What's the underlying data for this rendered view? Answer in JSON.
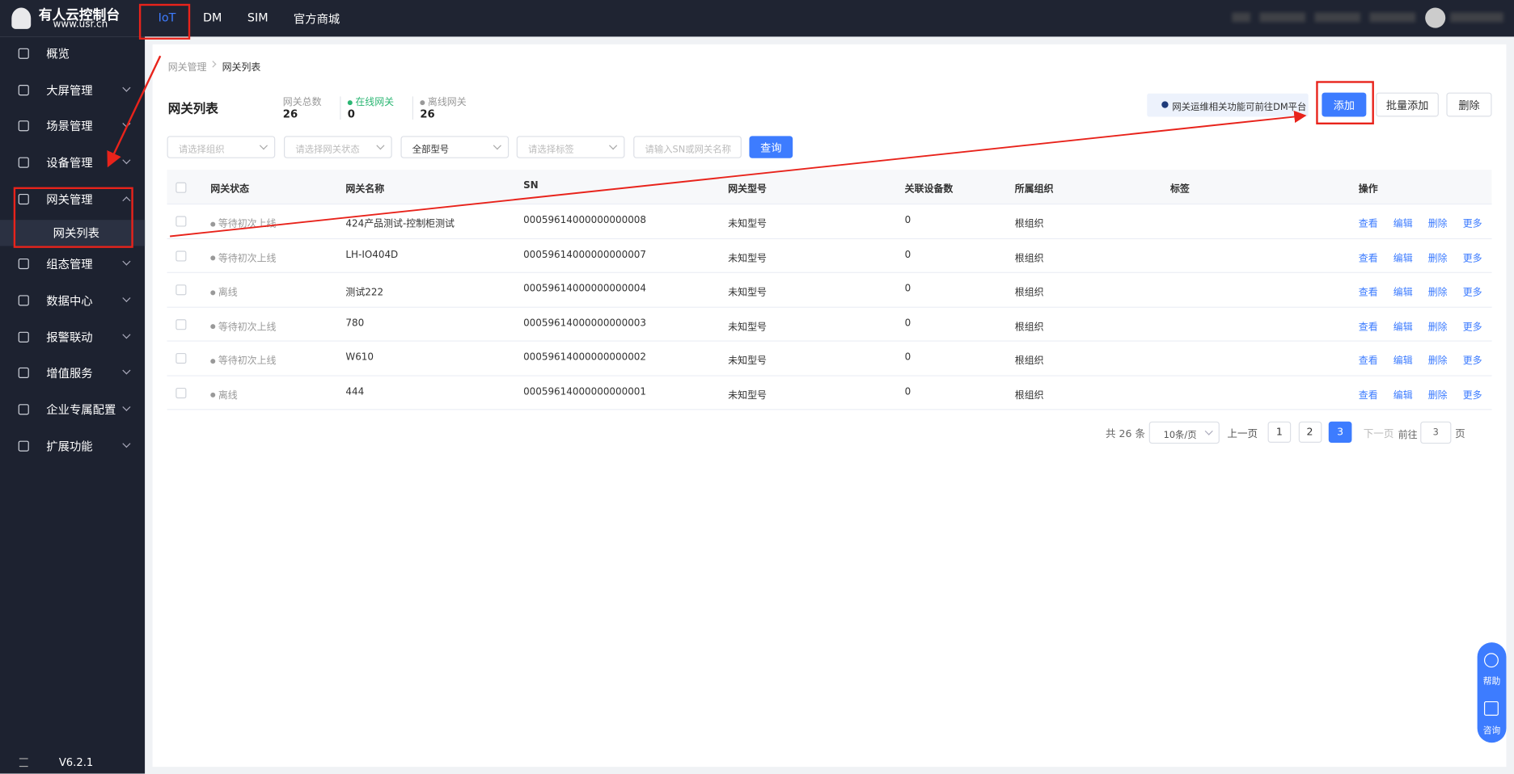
{
  "header": {
    "logo_title": "有人云控制台",
    "logo_url": "www.usr.cn",
    "nav": [
      "IoT",
      "DM",
      "SIM",
      "官方商城"
    ]
  },
  "sidebar": {
    "items": [
      "概览",
      "大屏管理",
      "场景管理",
      "设备管理",
      "网关管理",
      "组态管理",
      "数据中心",
      "报警联动",
      "增值服务",
      "企业专属配置",
      "扩展功能"
    ],
    "sub_item": "网关列表",
    "version": "V6.2.1"
  },
  "breadcrumb": [
    "网关管理",
    "网关列表"
  ],
  "page_title": "网关列表",
  "stats": [
    {
      "label": "网关总数",
      "value": 26
    },
    {
      "label": "在线网关",
      "value": 0
    },
    {
      "label": "离线网关",
      "value": 26
    }
  ],
  "notice": "网关运维相关功能可前往DM平台",
  "buttons": [
    "添加",
    "批量添加",
    "删除"
  ],
  "filters": [
    "请选择组织",
    "请选择网关状态",
    "全部型号",
    "请选择标签"
  ],
  "search_placeholder": "请输入SN或网关名称",
  "query": "查询",
  "table": {
    "columns": [
      "网关状态",
      "网关名称",
      "SN",
      "网关型号",
      "关联设备数",
      "所属组织",
      "标签",
      "操作"
    ],
    "rows": [
      [
        "等待初次上线",
        "424产品测试-控制柜测试",
        "00059614000000000008",
        "未知型号",
        0,
        "根组织"
      ],
      [
        "等待初次上线",
        "LH-IO404D",
        "00059614000000000007",
        "未知型号",
        0,
        "根组织"
      ],
      [
        "离线",
        "测试222",
        "00059614000000000004",
        "未知型号",
        0,
        "根组织"
      ],
      [
        "等待初次上线",
        "780",
        "00059614000000000003",
        "未知型号",
        0,
        "根组织"
      ],
      [
        "等待初次上线",
        "W610",
        "00059614000000000002",
        "未知型号",
        0,
        "根组织"
      ],
      [
        "离线",
        "444",
        "00059614000000000001",
        "未知型号",
        0,
        "根组织"
      ]
    ],
    "actions": [
      "查看",
      "编辑",
      "删除",
      "更多"
    ]
  },
  "pagination": {
    "total": "共 26 条",
    "page_size": "10条/页",
    "prev": "上一页",
    "pages": [
      1,
      2,
      3
    ],
    "next": "下一页",
    "goto": "前往",
    "goto_value": 3,
    "unit": "页"
  },
  "float_help": [
    "帮助",
    "咨询"
  ]
}
